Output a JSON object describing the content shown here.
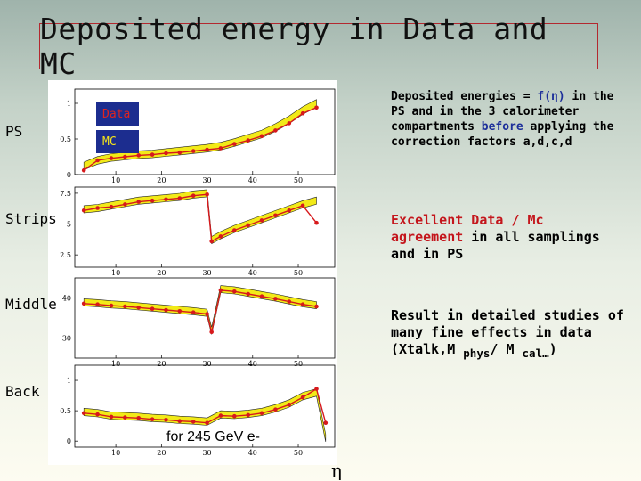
{
  "slide": {
    "title": "Deposited energy  in Data and MC",
    "row_labels": [
      "PS",
      "Strips",
      "Middle",
      "Back"
    ],
    "legend": {
      "data_label": "Data",
      "mc_label": "MC"
    },
    "energy_note": "for 245 GeV e-",
    "eta_label": "η",
    "note1": {
      "p1": "Deposited energies = ",
      "fexpr": "f(η)",
      "p2": " in the PS and in the 3 calorimeter compartments ",
      "before": "before",
      "p3": " applying the correction factors a,d,c,d"
    },
    "note2": {
      "p1": "Excellent Data / Mc ",
      "agreement": "agreement",
      "p2": " in all samplings and in PS"
    },
    "note3": {
      "p1": "Result in detailed studies of many fine effects in data (Xtalk,M ",
      "sub1": "phys",
      "p2": "/ M ",
      "sub2": "cal…",
      "p3": ")"
    }
  },
  "chart_data": [
    {
      "type": "scatter",
      "name": "PS",
      "x_ticks": [
        10,
        20,
        30,
        40,
        50
      ],
      "y_ticks": [
        "0",
        "0.5",
        "1"
      ],
      "ylim": [
        0,
        1.2
      ],
      "xlim": [
        1,
        58
      ],
      "series": [
        {
          "name": "Data",
          "x": [
            3,
            6,
            9,
            12,
            15,
            18,
            21,
            24,
            27,
            30,
            33,
            36,
            39,
            42,
            45,
            48,
            51,
            54
          ],
          "y": [
            0.06,
            0.2,
            0.23,
            0.25,
            0.27,
            0.28,
            0.3,
            0.31,
            0.33,
            0.35,
            0.37,
            0.43,
            0.48,
            0.54,
            0.62,
            0.72,
            0.86,
            0.94
          ]
        },
        {
          "name": "MC",
          "x": [
            3,
            6,
            9,
            12,
            15,
            18,
            21,
            24,
            27,
            30,
            33,
            36,
            39,
            42,
            45,
            48,
            51,
            54
          ],
          "y": [
            0.12,
            0.2,
            0.24,
            0.26,
            0.28,
            0.29,
            0.31,
            0.33,
            0.35,
            0.37,
            0.4,
            0.45,
            0.51,
            0.57,
            0.66,
            0.77,
            0.9,
            1.0
          ]
        }
      ]
    },
    {
      "type": "scatter",
      "name": "Strips",
      "x_ticks": [
        10,
        20,
        30,
        40,
        50
      ],
      "y_ticks": [
        "2.5",
        "5",
        "7.5"
      ],
      "ylim": [
        1.5,
        8
      ],
      "xlim": [
        1,
        58
      ],
      "series": [
        {
          "name": "Data",
          "x": [
            3,
            6,
            9,
            12,
            15,
            18,
            21,
            24,
            27,
            30,
            31,
            33,
            36,
            39,
            42,
            45,
            48,
            51,
            54
          ],
          "y": [
            6.1,
            6.3,
            6.4,
            6.6,
            6.8,
            6.9,
            7.0,
            7.1,
            7.3,
            7.4,
            3.6,
            4.0,
            4.5,
            4.9,
            5.3,
            5.7,
            6.1,
            6.5,
            5.1
          ]
        },
        {
          "name": "MC",
          "x": [
            3,
            6,
            9,
            12,
            15,
            18,
            21,
            24,
            27,
            30,
            31,
            33,
            36,
            39,
            42,
            45,
            48,
            51,
            54
          ],
          "y": [
            6.2,
            6.3,
            6.5,
            6.7,
            6.9,
            7.0,
            7.1,
            7.2,
            7.4,
            7.5,
            3.7,
            4.1,
            4.6,
            5.0,
            5.4,
            5.8,
            6.2,
            6.6,
            6.9
          ]
        }
      ]
    },
    {
      "type": "scatter",
      "name": "Middle",
      "x_ticks": [
        10,
        20,
        30,
        40,
        50
      ],
      "y_ticks": [
        "30",
        "40"
      ],
      "ylim": [
        25,
        45
      ],
      "xlim": [
        1,
        58
      ],
      "series": [
        {
          "name": "Data",
          "x": [
            3,
            6,
            9,
            12,
            15,
            18,
            21,
            24,
            27,
            30,
            31,
            33,
            36,
            39,
            42,
            45,
            48,
            51,
            54
          ],
          "y": [
            38.6,
            38.4,
            38.1,
            37.9,
            37.6,
            37.3,
            37.0,
            36.7,
            36.4,
            36.0,
            31.5,
            41.9,
            41.6,
            41.0,
            40.4,
            39.8,
            39.1,
            38.4,
            37.9
          ]
        },
        {
          "name": "MC",
          "x": [
            3,
            6,
            9,
            12,
            15,
            18,
            21,
            24,
            27,
            30,
            31,
            33,
            36,
            39,
            42,
            45,
            48,
            51,
            54
          ],
          "y": [
            38.9,
            38.7,
            38.4,
            38.2,
            37.9,
            37.6,
            37.3,
            37.0,
            36.7,
            36.3,
            31.8,
            42.2,
            41.9,
            41.3,
            40.7,
            40.1,
            39.4,
            38.7,
            38.2
          ]
        }
      ]
    },
    {
      "type": "scatter",
      "name": "Back",
      "x_ticks": [
        10,
        20,
        30,
        40,
        50
      ],
      "y_ticks": [
        "0",
        "0.5",
        "1"
      ],
      "ylim": [
        -0.1,
        1.25
      ],
      "xlim": [
        1,
        58
      ],
      "series": [
        {
          "name": "Data",
          "x": [
            3,
            6,
            9,
            12,
            15,
            18,
            21,
            24,
            27,
            30,
            33,
            36,
            39,
            42,
            45,
            48,
            51,
            54,
            56
          ],
          "y": [
            0.46,
            0.44,
            0.4,
            0.39,
            0.38,
            0.36,
            0.35,
            0.33,
            0.32,
            0.3,
            0.42,
            0.41,
            0.43,
            0.46,
            0.52,
            0.6,
            0.72,
            0.86,
            0.3
          ]
        },
        {
          "name": "MC",
          "x": [
            3,
            6,
            9,
            12,
            15,
            18,
            21,
            24,
            27,
            30,
            33,
            36,
            39,
            42,
            45,
            48,
            51,
            54,
            56
          ],
          "y": [
            0.48,
            0.46,
            0.42,
            0.41,
            0.4,
            0.38,
            0.37,
            0.35,
            0.34,
            0.32,
            0.44,
            0.43,
            0.45,
            0.48,
            0.54,
            0.62,
            0.74,
            0.8,
            0.05
          ]
        }
      ]
    }
  ],
  "colors": {
    "data": "#d7191c",
    "mc_band": "#f2ea18",
    "mc_edge": "#222222",
    "title_border": "#b3282f"
  }
}
